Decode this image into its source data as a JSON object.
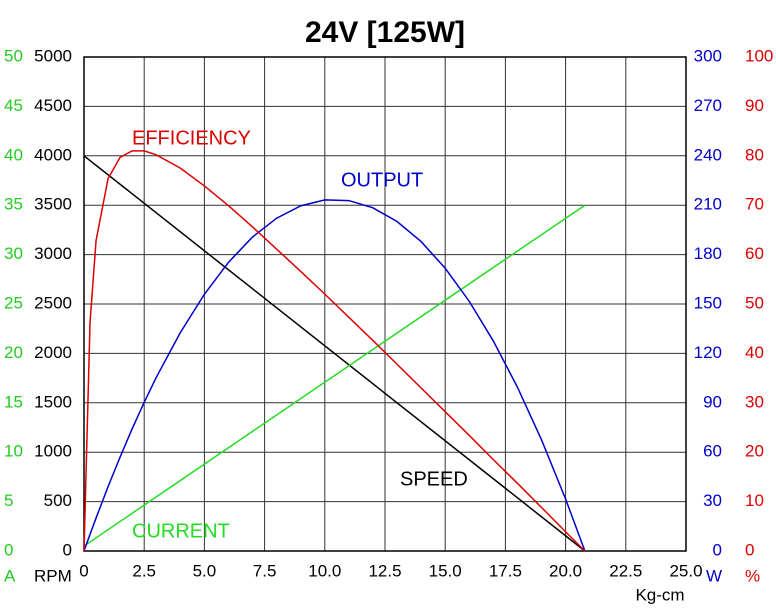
{
  "chart_data": {
    "type": "line",
    "title": "24V [125W]",
    "x_label": "Kg-cm",
    "xlim": [
      0,
      25
    ],
    "xticks": [
      0,
      2.5,
      {
        "value": 5,
        "label": "5.0"
      },
      7.5,
      {
        "value": 10,
        "label": "10.0"
      },
      12.5,
      {
        "value": 15,
        "label": "15.0"
      },
      17.5,
      {
        "value": 20,
        "label": "20.0"
      },
      22.5,
      {
        "value": 25,
        "label": "25.0"
      }
    ],
    "grid": true,
    "y_axes": [
      {
        "unit": "A",
        "color": "#22cc22",
        "lim": [
          0,
          50
        ],
        "ticks": [
          0,
          5,
          10,
          15,
          20,
          25,
          30,
          35,
          40,
          45,
          50
        ]
      },
      {
        "unit": "RPM",
        "color": "#000000",
        "lim": [
          0,
          5000
        ],
        "ticks": [
          0,
          500,
          1000,
          1500,
          2000,
          2500,
          3000,
          3500,
          4000,
          4500,
          5000
        ]
      },
      {
        "unit": "W",
        "color": "#0000cc",
        "lim": [
          0,
          300
        ],
        "ticks": [
          0,
          30,
          60,
          90,
          120,
          150,
          180,
          210,
          240,
          270,
          300
        ]
      },
      {
        "unit": "%",
        "color": "#dd0000",
        "lim": [
          0,
          100
        ],
        "ticks": [
          0,
          10,
          20,
          30,
          40,
          50,
          60,
          70,
          80,
          90,
          100
        ]
      }
    ],
    "series": [
      {
        "name": "SPEED",
        "color": "#000000",
        "axis": 1,
        "x": [
          0,
          20.8
        ],
        "values": [
          4000,
          0
        ]
      },
      {
        "name": "CURRENT",
        "color": "#22dd22",
        "axis": 0,
        "x": [
          0,
          20.8
        ],
        "values": [
          0.5,
          35
        ]
      },
      {
        "name": "OUTPUT",
        "color": "#0000cc",
        "axis": 2,
        "x": [
          0,
          0.25,
          0.5,
          1,
          1.5,
          2,
          2.5,
          3,
          4,
          5,
          6,
          7,
          8,
          9,
          10,
          11,
          12,
          13,
          14,
          15,
          16,
          17,
          18,
          19,
          20,
          20.8
        ],
        "values": [
          0,
          10.1,
          20.0,
          39.1,
          57.1,
          74.2,
          90.3,
          105.4,
          132.6,
          155.9,
          175.3,
          190.7,
          202.1,
          209.6,
          213.2,
          212.8,
          208.4,
          200.1,
          187.9,
          171.7,
          151.6,
          127.5,
          99.5,
          67.5,
          31.6,
          0
        ]
      },
      {
        "name": "EFFICIENCY",
        "color": "#dd0000",
        "axis": 3,
        "x": [
          0,
          0.25,
          0.5,
          1,
          1.5,
          2,
          2.5,
          3,
          4,
          5,
          6,
          7,
          8,
          9,
          10,
          11,
          12,
          13,
          14,
          15,
          16,
          17,
          18,
          19,
          20,
          20.8
        ],
        "values": [
          0,
          46.2,
          62.8,
          75.4,
          79.7,
          81.0,
          81.0,
          80.2,
          77.5,
          73.9,
          69.9,
          65.6,
          61.1,
          56.6,
          52.0,
          47.3,
          42.6,
          37.8,
          33.0,
          28.2,
          23.4,
          18.5,
          13.7,
          8.8,
          3.9,
          0
        ]
      }
    ]
  }
}
